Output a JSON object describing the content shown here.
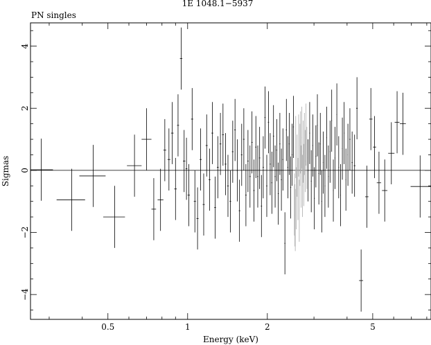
{
  "chart_data": {
    "type": "scatter",
    "title": "1E 1048.1−5937",
    "subtitle": "PN singles",
    "xlabel": "Energy (keV)",
    "ylabel": "Sigmas",
    "x_scale": "log",
    "xlim": [
      0.255,
      8.3
    ],
    "ylim": [
      -4.8,
      4.75
    ],
    "x_ticks": [
      {
        "value": 0.5,
        "label": "0.5"
      },
      {
        "value": 1,
        "label": "1"
      },
      {
        "value": 2,
        "label": "2"
      },
      {
        "value": 5,
        "label": "5"
      }
    ],
    "y_ticks": [
      {
        "value": -4,
        "label": "−4"
      },
      {
        "value": -2,
        "label": "−2"
      },
      {
        "value": 0,
        "label": "0"
      },
      {
        "value": 2,
        "label": "2"
      },
      {
        "value": 4,
        "label": "4"
      }
    ],
    "zero_line": 0,
    "series": [
      {
        "color": "#000000",
        "points": [
          {
            "x": 0.28,
            "xlo": 0.255,
            "xhi": 0.31,
            "y": 0.02,
            "err": 1.0
          },
          {
            "x": 0.365,
            "xlo": 0.32,
            "xhi": 0.41,
            "y": -0.95,
            "err": 1.0
          },
          {
            "x": 0.44,
            "xlo": 0.39,
            "xhi": 0.49,
            "y": -0.18,
            "err": 1.0
          },
          {
            "x": 0.53,
            "xlo": 0.48,
            "xhi": 0.58,
            "y": -1.5,
            "err": 1.0
          },
          {
            "x": 0.63,
            "xlo": 0.59,
            "xhi": 0.67,
            "y": 0.15,
            "err": 1.0
          },
          {
            "x": 0.7,
            "xlo": 0.67,
            "xhi": 0.73,
            "y": 1.0,
            "err": 1.0
          },
          {
            "x": 0.745,
            "xlo": 0.73,
            "xhi": 0.76,
            "y": -1.25,
            "err": 1.0
          },
          {
            "x": 0.79,
            "xlo": 0.77,
            "xhi": 0.81,
            "y": -0.95,
            "err": 1.0
          },
          {
            "x": 0.82,
            "xlo": 0.81,
            "xhi": 0.83,
            "y": 0.65,
            "err": 1.0
          },
          {
            "x": 0.85,
            "xlo": 0.84,
            "xhi": 0.86,
            "y": 0.35,
            "err": 1.0
          },
          {
            "x": 0.875,
            "xlo": 0.865,
            "xhi": 0.885,
            "y": 1.2,
            "err": 1.0
          },
          {
            "x": 0.9,
            "xlo": 0.89,
            "xhi": 0.91,
            "y": -0.6,
            "err": 1.0
          },
          {
            "x": 0.92,
            "xlo": 0.912,
            "xhi": 0.928,
            "y": 1.45,
            "err": 1.0
          },
          {
            "x": 0.945,
            "xlo": 0.935,
            "xhi": 0.955,
            "y": 3.6,
            "err": 1.0
          },
          {
            "x": 0.97,
            "xlo": 0.96,
            "xhi": 0.98,
            "y": 0.3,
            "err": 1.0
          },
          {
            "x": 0.99,
            "xlo": 0.982,
            "xhi": 0.998,
            "y": 0.05,
            "err": 1.0
          },
          {
            "x": 1.01,
            "xlo": 1.0,
            "xhi": 1.02,
            "y": -0.8,
            "err": 1.0
          },
          {
            "x": 1.04,
            "xlo": 1.03,
            "xhi": 1.05,
            "y": 1.65,
            "err": 1.0
          },
          {
            "x": 1.065,
            "xlo": 1.055,
            "xhi": 1.075,
            "y": -1.0,
            "err": 1.0
          },
          {
            "x": 1.09,
            "xlo": 1.08,
            "xhi": 1.1,
            "y": -1.55,
            "err": 1.0
          },
          {
            "x": 1.12,
            "xlo": 1.11,
            "xhi": 1.13,
            "y": 0.35,
            "err": 1.0
          },
          {
            "x": 1.15,
            "xlo": 1.14,
            "xhi": 1.16,
            "y": -1.1,
            "err": 1.0
          },
          {
            "x": 1.18,
            "xlo": 1.17,
            "xhi": 1.19,
            "y": 0.8,
            "err": 1.0
          },
          {
            "x": 1.21,
            "xlo": 1.2,
            "xhi": 1.22,
            "y": -0.3,
            "err": 1.0
          },
          {
            "x": 1.24,
            "xlo": 1.23,
            "xhi": 1.25,
            "y": 1.2,
            "err": 1.0
          },
          {
            "x": 1.27,
            "xlo": 1.26,
            "xhi": 1.28,
            "y": -1.2,
            "err": 1.0
          },
          {
            "x": 1.3,
            "xlo": 1.29,
            "xhi": 1.31,
            "y": 0.1,
            "err": 1.0
          },
          {
            "x": 1.33,
            "xlo": 1.32,
            "xhi": 1.34,
            "y": 0.85,
            "err": 1.0
          },
          {
            "x": 1.36,
            "xlo": 1.35,
            "xhi": 1.37,
            "y": 1.15,
            "err": 1.0
          },
          {
            "x": 1.39,
            "xlo": 1.38,
            "xhi": 1.4,
            "y": 0.2,
            "err": 1.0
          },
          {
            "x": 1.42,
            "xlo": 1.41,
            "xhi": 1.43,
            "y": -0.5,
            "err": 1.0
          },
          {
            "x": 1.45,
            "xlo": 1.44,
            "xhi": 1.46,
            "y": -1.0,
            "err": 1.0
          },
          {
            "x": 1.48,
            "xlo": 1.47,
            "xhi": 1.49,
            "y": 0.6,
            "err": 1.0
          },
          {
            "x": 1.51,
            "xlo": 1.5,
            "xhi": 1.52,
            "y": 1.3,
            "err": 1.0
          },
          {
            "x": 1.54,
            "xlo": 1.53,
            "xhi": 1.55,
            "y": 0.0,
            "err": 1.0
          },
          {
            "x": 1.57,
            "xlo": 1.56,
            "xhi": 1.58,
            "y": -1.3,
            "err": 1.0
          },
          {
            "x": 1.6,
            "xlo": 1.59,
            "xhi": 1.61,
            "y": 0.5,
            "err": 1.0
          },
          {
            "x": 1.63,
            "xlo": 1.62,
            "xhi": 1.64,
            "y": 1.0,
            "err": 1.0
          },
          {
            "x": 1.66,
            "xlo": 1.65,
            "xhi": 1.67,
            "y": -0.8,
            "err": 1.0
          },
          {
            "x": 1.69,
            "xlo": 1.68,
            "xhi": 1.7,
            "y": 0.3,
            "err": 1.0
          },
          {
            "x": 1.72,
            "xlo": 1.71,
            "xhi": 1.73,
            "y": -0.2,
            "err": 1.0
          },
          {
            "x": 1.75,
            "xlo": 1.74,
            "xhi": 1.76,
            "y": 0.9,
            "err": 1.0
          },
          {
            "x": 1.78,
            "xlo": 1.77,
            "xhi": 1.79,
            "y": -0.65,
            "err": 1.0
          },
          {
            "x": 1.81,
            "xlo": 1.8,
            "xhi": 1.82,
            "y": 0.75,
            "err": 1.0
          },
          {
            "x": 1.84,
            "xlo": 1.83,
            "xhi": 1.85,
            "y": -0.2,
            "err": 1.0
          },
          {
            "x": 1.87,
            "xlo": 1.86,
            "xhi": 1.88,
            "y": 0.4,
            "err": 1.0
          },
          {
            "x": 1.9,
            "xlo": 1.89,
            "xhi": 1.91,
            "y": -1.15,
            "err": 1.0
          },
          {
            "x": 1.93,
            "xlo": 1.92,
            "xhi": 1.94,
            "y": 0.1,
            "err": 1.0
          },
          {
            "x": 1.96,
            "xlo": 1.95,
            "xhi": 1.97,
            "y": 1.7,
            "err": 1.0
          },
          {
            "x": 1.99,
            "xlo": 1.98,
            "xhi": 2.0,
            "y": -0.5,
            "err": 1.0
          },
          {
            "x": 2.02,
            "xlo": 2.01,
            "xhi": 2.03,
            "y": 1.55,
            "err": 1.0
          },
          {
            "x": 2.05,
            "xlo": 2.04,
            "xhi": 2.06,
            "y": 0.2,
            "err": 1.0
          },
          {
            "x": 2.08,
            "xlo": 2.07,
            "xhi": 2.09,
            "y": -0.4,
            "err": 1.0
          },
          {
            "x": 2.11,
            "xlo": 2.1,
            "xhi": 2.12,
            "y": 1.1,
            "err": 1.0
          },
          {
            "x": 2.14,
            "xlo": 2.13,
            "xhi": 2.15,
            "y": -0.2,
            "err": 1.0
          },
          {
            "x": 2.17,
            "xlo": 2.16,
            "xhi": 2.18,
            "y": 0.65,
            "err": 1.0
          },
          {
            "x": 2.2,
            "xlo": 2.19,
            "xhi": 2.21,
            "y": -0.75,
            "err": 1.0
          },
          {
            "x": 2.23,
            "xlo": 2.22,
            "xhi": 2.24,
            "y": 0.85,
            "err": 1.0
          },
          {
            "x": 2.26,
            "xlo": 2.25,
            "xhi": 2.27,
            "y": -0.3,
            "err": 1.0
          },
          {
            "x": 2.29,
            "xlo": 2.28,
            "xhi": 2.3,
            "y": 0.35,
            "err": 1.0
          },
          {
            "x": 2.33,
            "xlo": 2.32,
            "xhi": 2.34,
            "y": -2.35,
            "err": 1.0
          },
          {
            "x": 2.36,
            "xlo": 2.35,
            "xhi": 2.37,
            "y": 1.3,
            "err": 1.0
          },
          {
            "x": 2.39,
            "xlo": 2.38,
            "xhi": 2.4,
            "y": 0.1,
            "err": 1.0
          },
          {
            "x": 2.42,
            "xlo": 2.41,
            "xhi": 2.43,
            "y": 0.85,
            "err": 1.0
          },
          {
            "x": 2.45,
            "xlo": 2.44,
            "xhi": 2.46,
            "y": -0.55,
            "err": 1.0
          },
          {
            "x": 2.48,
            "xlo": 2.47,
            "xhi": 2.49,
            "y": 0.5,
            "err": 1.0
          },
          {
            "x": 2.51,
            "xlo": 2.5,
            "xhi": 2.52,
            "y": 1.4,
            "err": 1.0
          },
          {
            "x": 2.85,
            "xlo": 2.84,
            "xhi": 2.86,
            "y": 0.0,
            "err": 1.0
          },
          {
            "x": 2.89,
            "xlo": 2.88,
            "xhi": 2.9,
            "y": 1.2,
            "err": 1.0
          },
          {
            "x": 2.93,
            "xlo": 2.92,
            "xhi": 2.94,
            "y": -0.35,
            "err": 1.0
          },
          {
            "x": 2.97,
            "xlo": 2.96,
            "xhi": 2.98,
            "y": 0.8,
            "err": 1.0
          },
          {
            "x": 3.01,
            "xlo": 3.0,
            "xhi": 3.02,
            "y": -0.9,
            "err": 1.0
          },
          {
            "x": 3.05,
            "xlo": 3.04,
            "xhi": 3.06,
            "y": 0.45,
            "err": 1.0
          },
          {
            "x": 3.09,
            "xlo": 3.08,
            "xhi": 3.1,
            "y": 1.45,
            "err": 1.0
          },
          {
            "x": 3.13,
            "xlo": 3.12,
            "xhi": 3.14,
            "y": -0.1,
            "err": 1.0
          },
          {
            "x": 3.17,
            "xlo": 3.16,
            "xhi": 3.18,
            "y": 0.85,
            "err": 1.0
          },
          {
            "x": 3.21,
            "xlo": 3.2,
            "xhi": 3.22,
            "y": -1.0,
            "err": 1.0
          },
          {
            "x": 3.25,
            "xlo": 3.24,
            "xhi": 3.26,
            "y": 0.25,
            "err": 1.0
          },
          {
            "x": 3.3,
            "xlo": 3.29,
            "xhi": 3.31,
            "y": -0.5,
            "err": 1.0
          },
          {
            "x": 3.35,
            "xlo": 3.34,
            "xhi": 3.36,
            "y": 1.05,
            "err": 1.0
          },
          {
            "x": 3.4,
            "xlo": 3.39,
            "xhi": 3.41,
            "y": -0.2,
            "err": 1.0
          },
          {
            "x": 3.45,
            "xlo": 3.44,
            "xhi": 3.46,
            "y": 0.6,
            "err": 1.0
          },
          {
            "x": 3.5,
            "xlo": 3.49,
            "xhi": 3.51,
            "y": 1.6,
            "err": 1.0
          },
          {
            "x": 3.55,
            "xlo": 3.54,
            "xhi": 3.56,
            "y": -0.65,
            "err": 1.0
          },
          {
            "x": 3.6,
            "xlo": 3.59,
            "xhi": 3.61,
            "y": 0.4,
            "err": 1.0
          },
          {
            "x": 3.66,
            "xlo": 3.65,
            "xhi": 3.67,
            "y": 1.8,
            "err": 1.0
          },
          {
            "x": 3.72,
            "xlo": 3.71,
            "xhi": 3.73,
            "y": 0.1,
            "err": 1.0
          },
          {
            "x": 3.78,
            "xlo": 3.77,
            "xhi": 3.79,
            "y": -0.8,
            "err": 1.0
          },
          {
            "x": 3.84,
            "xlo": 3.83,
            "xhi": 3.85,
            "y": 0.7,
            "err": 1.0
          },
          {
            "x": 3.9,
            "xlo": 3.89,
            "xhi": 3.91,
            "y": 1.2,
            "err": 1.0
          },
          {
            "x": 3.96,
            "xlo": 3.95,
            "xhi": 3.97,
            "y": -0.3,
            "err": 1.0
          },
          {
            "x": 4.03,
            "xlo": 4.02,
            "xhi": 4.04,
            "y": 0.5,
            "err": 1.0
          },
          {
            "x": 4.1,
            "xlo": 4.08,
            "xhi": 4.12,
            "y": 1.0,
            "err": 1.0
          },
          {
            "x": 4.18,
            "xlo": 4.16,
            "xhi": 4.2,
            "y": 0.25,
            "err": 1.0
          },
          {
            "x": 4.27,
            "xlo": 4.24,
            "xhi": 4.3,
            "y": 0.15,
            "err": 1.0
          },
          {
            "x": 4.36,
            "xlo": 4.33,
            "xhi": 4.39,
            "y": 2.0,
            "err": 1.0
          },
          {
            "x": 4.52,
            "xlo": 4.44,
            "xhi": 4.6,
            "y": -3.55,
            "err": 1.0
          },
          {
            "x": 4.75,
            "xlo": 4.68,
            "xhi": 4.82,
            "y": -0.85,
            "err": 1.0
          },
          {
            "x": 4.92,
            "xlo": 4.85,
            "xhi": 4.99,
            "y": 1.65,
            "err": 1.0
          },
          {
            "x": 5.08,
            "xlo": 5.01,
            "xhi": 5.15,
            "y": 0.75,
            "err": 1.0
          },
          {
            "x": 5.28,
            "xlo": 5.18,
            "xhi": 5.38,
            "y": -0.4,
            "err": 1.0
          },
          {
            "x": 5.55,
            "xlo": 5.42,
            "xhi": 5.68,
            "y": -0.65,
            "err": 1.0
          },
          {
            "x": 5.88,
            "xlo": 5.72,
            "xhi": 6.04,
            "y": 0.55,
            "err": 1.0
          },
          {
            "x": 6.18,
            "xlo": 6.05,
            "xhi": 6.31,
            "y": 1.55,
            "err": 1.0
          },
          {
            "x": 6.5,
            "xlo": 6.33,
            "xhi": 6.67,
            "y": 1.5,
            "err": 1.0
          },
          {
            "x": 7.55,
            "xlo": 6.95,
            "xhi": 8.3,
            "y": -0.52,
            "err": 1.0
          }
        ]
      },
      {
        "color": "#aaaaaa",
        "points": [
          {
            "x": 2.53,
            "xlo": 2.525,
            "xhi": 2.535,
            "y": -1.1,
            "err": 1.0
          },
          {
            "x": 2.54,
            "xlo": 2.535,
            "xhi": 2.545,
            "y": -1.45,
            "err": 1.0
          },
          {
            "x": 2.55,
            "xlo": 2.545,
            "xhi": 2.555,
            "y": -1.6,
            "err": 1.0
          },
          {
            "x": 2.56,
            "xlo": 2.555,
            "xhi": 2.565,
            "y": 0.75,
            "err": 1.0
          },
          {
            "x": 2.575,
            "xlo": 2.57,
            "xhi": 2.58,
            "y": -0.9,
            "err": 1.0
          },
          {
            "x": 2.59,
            "xlo": 2.585,
            "xhi": 2.595,
            "y": 0.15,
            "err": 1.0
          },
          {
            "x": 2.61,
            "xlo": 2.605,
            "xhi": 2.615,
            "y": -0.6,
            "err": 1.0
          },
          {
            "x": 2.625,
            "xlo": 2.62,
            "xhi": 2.63,
            "y": 0.8,
            "err": 1.0
          },
          {
            "x": 2.64,
            "xlo": 2.635,
            "xhi": 2.645,
            "y": -1.3,
            "err": 1.0
          },
          {
            "x": 2.655,
            "xlo": 2.65,
            "xhi": 2.66,
            "y": 0.5,
            "err": 1.0
          },
          {
            "x": 2.67,
            "xlo": 2.665,
            "xhi": 2.675,
            "y": 0.9,
            "err": 1.0
          },
          {
            "x": 2.685,
            "xlo": 2.68,
            "xhi": 2.69,
            "y": -0.2,
            "err": 1.0
          },
          {
            "x": 2.7,
            "xlo": 2.695,
            "xhi": 2.705,
            "y": 1.05,
            "err": 1.0
          },
          {
            "x": 2.715,
            "xlo": 2.71,
            "xhi": 2.72,
            "y": -0.5,
            "err": 1.0
          },
          {
            "x": 2.73,
            "xlo": 2.725,
            "xhi": 2.735,
            "y": 0.6,
            "err": 1.0
          },
          {
            "x": 2.745,
            "xlo": 2.74,
            "xhi": 2.75,
            "y": -0.15,
            "err": 1.0
          },
          {
            "x": 2.76,
            "xlo": 2.755,
            "xhi": 2.765,
            "y": 0.85,
            "err": 1.0
          },
          {
            "x": 2.78,
            "xlo": 2.775,
            "xhi": 2.785,
            "y": 0.3,
            "err": 1.0
          },
          {
            "x": 2.8,
            "xlo": 2.795,
            "xhi": 2.805,
            "y": 1.15,
            "err": 1.0
          },
          {
            "x": 2.82,
            "xlo": 2.815,
            "xhi": 2.825,
            "y": 0.4,
            "err": 1.0
          }
        ]
      }
    ]
  }
}
